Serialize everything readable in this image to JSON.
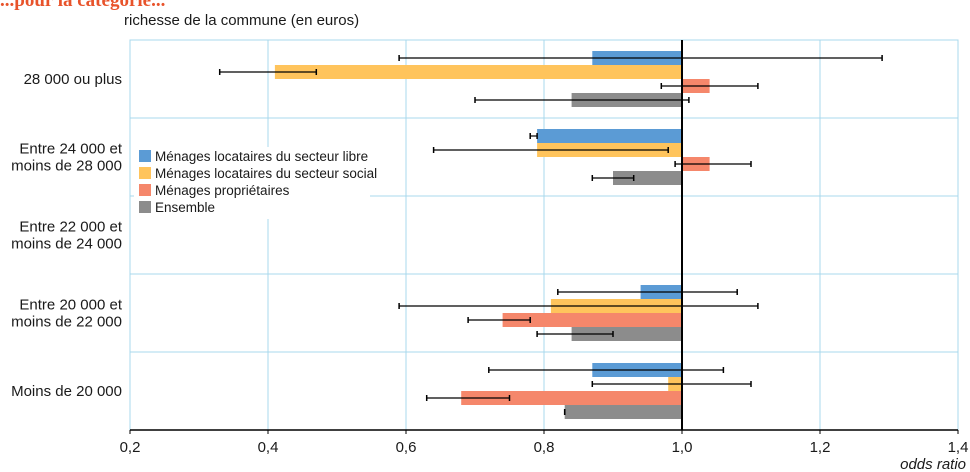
{
  "title": "...pour la catégorie...",
  "chart_data": {
    "type": "bar",
    "orientation": "horizontal",
    "title": "",
    "ylabel": "richesse de la commune (en euros)",
    "xlabel": "odds ratio",
    "xlim": [
      0.2,
      1.4
    ],
    "xticks": [
      "0,2",
      "0,4",
      "0,6",
      "0,8",
      "1,0",
      "1,2",
      "1,4"
    ],
    "baseline": 1.0,
    "grid": true,
    "legend_position": "left",
    "categories": [
      "28 000 ou plus",
      "Entre 24 000 et moins de 28 000",
      "Entre 22 000 et moins de 24 000",
      "Entre 20 000 et moins de 22 000",
      "Moins de 20 000"
    ],
    "category_lines": [
      [
        "28 000 ou plus"
      ],
      [
        "Entre 24 000 et",
        "moins de 28 000"
      ],
      [
        "Entre 22 000 et",
        "moins de 24 000"
      ],
      [
        "Entre 20 000 et",
        "moins de 22 000"
      ],
      [
        "Moins de 20 000"
      ]
    ],
    "series": [
      {
        "name": "Ménages locataires du secteur libre",
        "color": "#5b9bd5",
        "values": [
          0.87,
          0.79,
          1.0,
          0.94,
          0.87
        ],
        "ci": [
          [
            0.59,
            1.29
          ],
          [
            0.78,
            0.79
          ],
          [
            1.0,
            1.0
          ],
          [
            0.82,
            1.08
          ],
          [
            0.72,
            1.06
          ]
        ]
      },
      {
        "name": "Ménages locataires du secteur social",
        "color": "#ffc45c",
        "values": [
          0.41,
          0.79,
          1.0,
          0.81,
          0.98
        ],
        "ci": [
          [
            0.33,
            0.47
          ],
          [
            0.64,
            0.98
          ],
          [
            1.0,
            1.0
          ],
          [
            0.59,
            1.11
          ],
          [
            0.87,
            1.1
          ]
        ]
      },
      {
        "name": "Ménages propriétaires",
        "color": "#f5876b",
        "values": [
          1.04,
          1.04,
          1.0,
          0.74,
          0.68
        ],
        "ci": [
          [
            0.97,
            1.11
          ],
          [
            0.99,
            1.1
          ],
          [
            1.0,
            1.0
          ],
          [
            0.69,
            0.78
          ],
          [
            0.63,
            0.75
          ]
        ]
      },
      {
        "name": "Ensemble",
        "color": "#8c8c8c",
        "values": [
          0.84,
          0.9,
          1.0,
          0.84,
          0.83
        ],
        "ci": [
          [
            0.7,
            1.01
          ],
          [
            0.87,
            0.93
          ],
          [
            1.0,
            1.0
          ],
          [
            0.79,
            0.9
          ],
          [
            0.83,
            0.83
          ]
        ]
      }
    ]
  }
}
